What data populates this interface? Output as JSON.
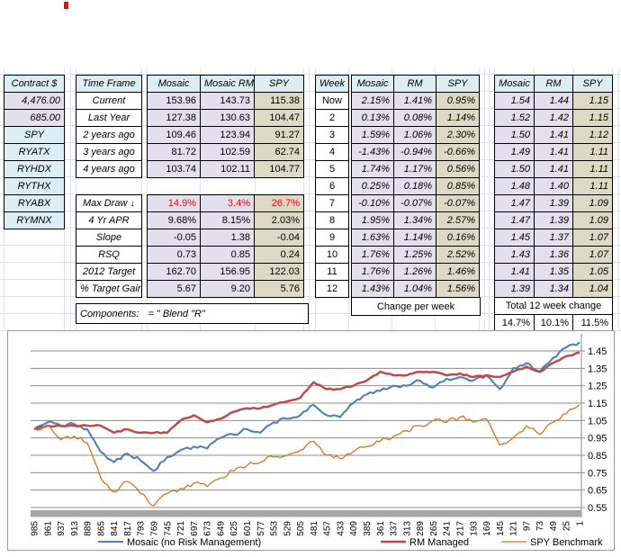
{
  "colors": {
    "header_fill": "#DAEEF3",
    "mosaic_fill": "#E4DFEC",
    "spy_fill": "#DDD9C4",
    "alert_text": "#FF0000",
    "series_blue": "#4F81BD",
    "series_red": "#BE4B48",
    "series_orange": "#E0711C"
  },
  "contracts": {
    "header": "Contract $",
    "rows": [
      {
        "label": "4,476.00",
        "cls": "lav num bi"
      },
      {
        "label": "685.00",
        "cls": "lav num bi"
      },
      {
        "label": "SPY",
        "cls": "blu ctr bi"
      },
      {
        "label": "RYATX",
        "cls": "blu ctr bi"
      },
      {
        "label": "RYHDX",
        "cls": "blu ctr bi"
      },
      {
        "label": "RYTHX",
        "cls": "blu ctr bi"
      },
      {
        "label": "RYABX",
        "cls": "blu ctr bi"
      },
      {
        "label": "RYMNX",
        "cls": "blu ctr bi"
      }
    ]
  },
  "summary": {
    "label_header": "Time Frame",
    "col_headers": [
      "Mosaic",
      "Mosaic RM",
      "SPY"
    ],
    "perf_rows": [
      {
        "label": "Current",
        "values": [
          "153.96",
          "143.73",
          "115.38"
        ]
      },
      {
        "label": "Last Year",
        "values": [
          "127.38",
          "130.63",
          "104.47"
        ]
      },
      {
        "label": "2 years ago",
        "values": [
          "109.46",
          "123.94",
          "91.27"
        ]
      },
      {
        "label": "3 years ago",
        "values": [
          "81.72",
          "102.59",
          "62.74"
        ]
      },
      {
        "label": "4 years ago",
        "values": [
          "103.74",
          "102.11",
          "104.77"
        ]
      }
    ],
    "stat_rows": [
      {
        "label": "Max Draw ↓",
        "values": [
          "14.9%",
          "3.4%",
          "26.7%"
        ],
        "cls": "red"
      },
      {
        "label": "4 Yr APR",
        "values": [
          "9.68%",
          "8.15%",
          "2.03%"
        ]
      },
      {
        "label": "Slope",
        "values": [
          "-0.05",
          "1.38",
          "-0.04"
        ]
      },
      {
        "label": "RSQ",
        "values": [
          "0.73",
          "0.85",
          "0.24"
        ]
      },
      {
        "label": "2012 Target",
        "values": [
          "162.70",
          "156.95",
          "122.03"
        ]
      },
      {
        "label": "% Target Gain",
        "values": [
          "5.67",
          "9.20",
          "5.76"
        ]
      }
    ],
    "components_label": "Components:",
    "components_value": "= \" Blend \"R\""
  },
  "weekly": {
    "week_header": "Week",
    "col_headers": [
      "Mosaic",
      "RM",
      "SPY"
    ],
    "rows": [
      {
        "week": "Now",
        "values": [
          "2.15%",
          "1.41%",
          "0.95%"
        ]
      },
      {
        "week": "2",
        "values": [
          "0.13%",
          "0.08%",
          "1.14%"
        ]
      },
      {
        "week": "3",
        "values": [
          "1.59%",
          "1.06%",
          "2.30%"
        ]
      },
      {
        "week": "4",
        "values": [
          "-1.43%",
          "-0.94%",
          "-0.66%"
        ]
      },
      {
        "week": "5",
        "values": [
          "1.74%",
          "1.17%",
          "0.56%"
        ]
      },
      {
        "week": "6",
        "values": [
          "0.25%",
          "0.18%",
          "0.85%"
        ]
      },
      {
        "week": "7",
        "values": [
          "-0.10%",
          "-0.07%",
          "-0.07%"
        ]
      },
      {
        "week": "8",
        "values": [
          "1.95%",
          "1.34%",
          "2.57%"
        ]
      },
      {
        "week": "9",
        "values": [
          "1.63%",
          "1.14%",
          "0.16%"
        ]
      },
      {
        "week": "10",
        "values": [
          "1.76%",
          "1.25%",
          "2.52%"
        ]
      },
      {
        "week": "11",
        "values": [
          "1.76%",
          "1.26%",
          "1.46%"
        ]
      },
      {
        "week": "12",
        "values": [
          "1.43%",
          "1.04%",
          "1.56%"
        ]
      }
    ],
    "footer": "Change per week"
  },
  "cumulative": {
    "col_headers": [
      "Mosaic",
      "RM",
      "SPY"
    ],
    "rows": [
      {
        "values": [
          "1.54",
          "1.44",
          "1.15"
        ]
      },
      {
        "values": [
          "1.52",
          "1.42",
          "1.15"
        ]
      },
      {
        "values": [
          "1.50",
          "1.41",
          "1.12"
        ]
      },
      {
        "values": [
          "1.49",
          "1.41",
          "1.11"
        ]
      },
      {
        "values": [
          "1.50",
          "1.41",
          "1.11"
        ]
      },
      {
        "values": [
          "1.48",
          "1.40",
          "1.11"
        ]
      },
      {
        "values": [
          "1.47",
          "1.39",
          "1.09"
        ]
      },
      {
        "values": [
          "1.47",
          "1.39",
          "1.09"
        ]
      },
      {
        "values": [
          "1.45",
          "1.37",
          "1.07"
        ]
      },
      {
        "values": [
          "1.43",
          "1.36",
          "1.07"
        ]
      },
      {
        "values": [
          "1.41",
          "1.35",
          "1.05"
        ]
      },
      {
        "values": [
          "1.39",
          "1.34",
          "1.04"
        ]
      }
    ],
    "footer": "Total 12 week change",
    "totals": [
      "14.7%",
      "10.1%",
      "11.5%"
    ]
  },
  "chart_data": {
    "type": "line",
    "title": "",
    "xlabel": "",
    "ylabel": "",
    "axis_side": "right",
    "grid": "horizontal",
    "legend_position": "bottom",
    "ylim": [
      0.5,
      1.55
    ],
    "y_ticks": [
      "1.45",
      "1.35",
      "1.25",
      "1.15",
      "1.05",
      "0.95",
      "0.85",
      "0.75",
      "0.65",
      "0.55"
    ],
    "x_categories": [
      "985",
      "961",
      "937",
      "913",
      "889",
      "865",
      "841",
      "817",
      "793",
      "769",
      "745",
      "721",
      "697",
      "673",
      "649",
      "625",
      "601",
      "577",
      "553",
      "529",
      "505",
      "481",
      "457",
      "433",
      "409",
      "385",
      "361",
      "337",
      "313",
      "289",
      "265",
      "241",
      "217",
      "193",
      "169",
      "145",
      "121",
      "97",
      "73",
      "49",
      "25",
      "1"
    ],
    "series": [
      {
        "name": "Mosaic (no Risk Management)",
        "color": "#4F81BD",
        "width": 2.1,
        "jitter": 0.01,
        "values": [
          1.0,
          1.04,
          1.02,
          1.03,
          1.0,
          0.87,
          0.81,
          0.86,
          0.82,
          0.76,
          0.84,
          0.88,
          0.9,
          0.89,
          0.95,
          0.97,
          1.0,
          0.98,
          1.04,
          1.06,
          1.08,
          1.14,
          1.08,
          1.07,
          1.15,
          1.2,
          1.22,
          1.25,
          1.25,
          1.28,
          1.24,
          1.29,
          1.3,
          1.28,
          1.31,
          1.23,
          1.35,
          1.38,
          1.33,
          1.41,
          1.47,
          1.5
        ]
      },
      {
        "name": "RM Managed",
        "color": "#BE4B48",
        "width": 2.5,
        "jitter": 0.004,
        "values": [
          1.0,
          1.02,
          1.02,
          1.02,
          1.02,
          1.02,
          0.98,
          1.0,
          0.98,
          0.98,
          0.98,
          1.05,
          1.08,
          1.04,
          1.06,
          1.1,
          1.12,
          1.12,
          1.14,
          1.16,
          1.18,
          1.27,
          1.23,
          1.23,
          1.25,
          1.28,
          1.33,
          1.31,
          1.31,
          1.33,
          1.33,
          1.31,
          1.32,
          1.3,
          1.31,
          1.3,
          1.33,
          1.36,
          1.33,
          1.38,
          1.42,
          1.44
        ]
      },
      {
        "name": "SPY Benchmark",
        "color": "#E0711C",
        "width": 1.3,
        "jitter": 0.014,
        "values": [
          1.0,
          1.02,
          0.94,
          0.96,
          0.92,
          0.72,
          0.64,
          0.7,
          0.63,
          0.56,
          0.63,
          0.66,
          0.69,
          0.67,
          0.72,
          0.76,
          0.79,
          0.81,
          0.84,
          0.85,
          0.88,
          0.93,
          0.85,
          0.83,
          0.87,
          0.9,
          0.93,
          0.96,
          0.99,
          1.02,
          1.05,
          1.04,
          1.07,
          1.04,
          1.06,
          0.91,
          0.95,
          1.02,
          0.97,
          1.04,
          1.09,
          1.14
        ]
      }
    ]
  }
}
